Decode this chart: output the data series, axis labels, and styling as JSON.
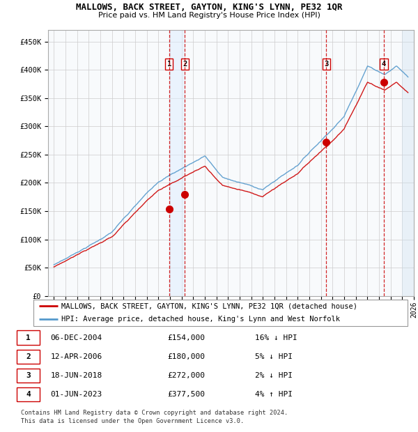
{
  "title": "MALLOWS, BACK STREET, GAYTON, KING'S LYNN, PE32 1QR",
  "subtitle": "Price paid vs. HM Land Registry's House Price Index (HPI)",
  "footer1": "Contains HM Land Registry data © Crown copyright and database right 2024.",
  "footer2": "This data is licensed under the Open Government Licence v3.0.",
  "legend_line1": "MALLOWS, BACK STREET, GAYTON, KING'S LYNN, PE32 1QR (detached house)",
  "legend_line2": "HPI: Average price, detached house, King's Lynn and West Norfolk",
  "transactions": [
    {
      "num": 1,
      "date": "06-DEC-2004",
      "price": 154000,
      "pct": "16%",
      "dir": "↓",
      "x": 2004.92
    },
    {
      "num": 2,
      "date": "12-APR-2006",
      "price": 180000,
      "pct": "5%",
      "dir": "↓",
      "x": 2006.28
    },
    {
      "num": 3,
      "date": "18-JUN-2018",
      "price": 272000,
      "pct": "2%",
      "dir": "↓",
      "x": 2018.46
    },
    {
      "num": 4,
      "date": "01-JUN-2023",
      "price": 377500,
      "pct": "4%",
      "dir": "↑",
      "x": 2023.42
    }
  ],
  "ylim": [
    0,
    470000
  ],
  "xlim": [
    1994.5,
    2026.0
  ],
  "hpi_color": "#5599cc",
  "price_color": "#cc0000",
  "dashed_color": "#cc0000",
  "grid_color": "#cccccc",
  "hatch_start": 2025.0,
  "hatch_color": "#ddeeff"
}
